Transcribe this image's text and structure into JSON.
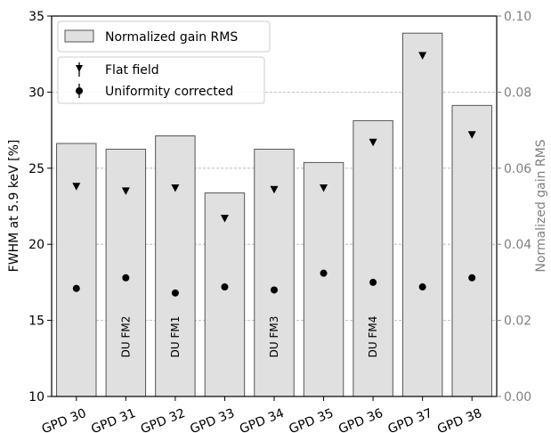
{
  "chart_data": {
    "type": "bar",
    "categories": [
      "GPD 30",
      "GPD 31",
      "GPD 32",
      "GPD 33",
      "GPD 34",
      "GPD 35",
      "GPD 36",
      "GPD 37",
      "GPD 38"
    ],
    "annotations": [
      "",
      "DU FM2",
      "DU FM1",
      "",
      "DU FM3",
      "",
      "DU FM4",
      "",
      ""
    ],
    "series": [
      {
        "name": "Normalized gain RMS",
        "axis": "right",
        "kind": "bar",
        "color": "#e0e0e0",
        "values": [
          0.0665,
          0.065,
          0.0685,
          0.0535,
          0.065,
          0.0615,
          0.0725,
          0.0955,
          0.0765
        ]
      },
      {
        "name": "Flat field",
        "axis": "left",
        "kind": "marker-triangle-down",
        "color": "#000000",
        "values": [
          23.8,
          23.5,
          23.7,
          21.7,
          23.6,
          23.7,
          26.7,
          32.4,
          27.2
        ]
      },
      {
        "name": "Uniformity corrected",
        "axis": "left",
        "kind": "marker-circle",
        "color": "#000000",
        "values": [
          17.1,
          17.8,
          16.8,
          17.2,
          17.0,
          18.1,
          17.5,
          17.2,
          17.8
        ]
      }
    ],
    "ylabel": "FWHM at 5.9 keV [%]",
    "ylabel_right": "Normalized gain RMS",
    "ylim": [
      10,
      35
    ],
    "ylim_right": [
      0,
      0.1
    ],
    "yticks": [
      "10",
      "15",
      "20",
      "25",
      "30",
      "35"
    ],
    "yticks_right": [
      "0.00",
      "0.02",
      "0.04",
      "0.06",
      "0.08",
      "0.10"
    ],
    "grid": "horizontal dashed",
    "legend_placement": "top-left"
  }
}
